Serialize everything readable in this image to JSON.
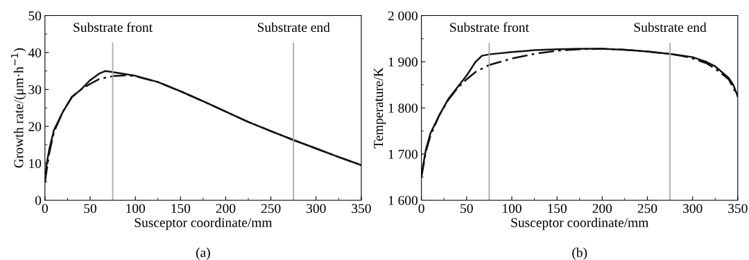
{
  "chart_data": [
    {
      "type": "line",
      "xlabel": "Susceptor coordinate/mm",
      "ylabel": "Growth rate/(μm·h$^{−1}$)",
      "xlim": [
        0,
        350
      ],
      "ylim": [
        0,
        50
      ],
      "xticks": [
        0,
        50,
        100,
        150,
        200,
        250,
        300,
        350
      ],
      "yticks": [
        0,
        10,
        20,
        30,
        40,
        50
      ],
      "grid": false,
      "legend": false,
      "series": [
        {
          "color": "#111111",
          "line_style": "solid",
          "x": [
            0,
            2,
            5,
            10,
            20,
            30,
            40,
            50,
            60,
            67,
            75,
            100,
            125,
            150,
            175,
            200,
            225,
            250,
            275,
            300,
            325,
            350
          ],
          "values": [
            5,
            10,
            14,
            19,
            24,
            28,
            30,
            32.5,
            34.3,
            35,
            34.7,
            33.7,
            32,
            29.5,
            26.8,
            24,
            21.2,
            18.7,
            16.3,
            14,
            11.7,
            9.5
          ]
        },
        {
          "color": "#111111",
          "line_style": "dashed",
          "x": [
            0,
            5,
            10,
            20,
            30,
            40,
            50,
            60,
            75,
            90,
            100,
            125,
            150,
            175,
            200,
            225,
            250,
            275,
            300,
            325,
            350
          ],
          "values": [
            5,
            13,
            18.5,
            24,
            28,
            30,
            31.5,
            32.8,
            33.6,
            33.8,
            33.6,
            32,
            29.5,
            26.8,
            24,
            21.2,
            18.7,
            16.3,
            14,
            11.7,
            9.5
          ]
        }
      ],
      "ref_lines": [
        {
          "axis": "x",
          "value": 75,
          "label": "Substrate front",
          "color": "#aaaaaa"
        },
        {
          "axis": "x",
          "value": 275,
          "label": "Substrate end",
          "color": "#aaaaaa"
        }
      ],
      "annotations": [
        "(a)"
      ]
    },
    {
      "type": "line",
      "xlabel": "Susceptor coordinate/mm",
      "ylabel": "Temperature/K",
      "xlim": [
        0,
        350
      ],
      "ylim": [
        1600,
        2000
      ],
      "xticks": [
        0,
        50,
        100,
        150,
        200,
        250,
        300,
        350
      ],
      "yticks": [
        {
          "value": 1600,
          "label": "1 600"
        },
        {
          "value": 1700,
          "label": "1 700"
        },
        {
          "value": 1800,
          "label": "1 800"
        },
        {
          "value": 1900,
          "label": "1 900"
        },
        {
          "value": 2000,
          "label": "2 000"
        }
      ],
      "grid": false,
      "legend": false,
      "series": [
        {
          "color": "#111111",
          "line_style": "solid",
          "x": [
            0,
            5,
            10,
            20,
            30,
            40,
            50,
            60,
            67,
            75,
            100,
            125,
            150,
            175,
            200,
            225,
            250,
            275,
            290,
            300,
            315,
            325,
            340,
            345,
            350
          ],
          "values": [
            1655,
            1710,
            1745,
            1785,
            1820,
            1845,
            1870,
            1900,
            1913,
            1916,
            1921,
            1925,
            1927,
            1928,
            1928,
            1926,
            1922,
            1917,
            1913,
            1910,
            1900,
            1890,
            1865,
            1850,
            1825
          ]
        },
        {
          "color": "#111111",
          "line_style": "dashed",
          "x": [
            0,
            5,
            10,
            20,
            30,
            40,
            50,
            60,
            75,
            100,
            125,
            150,
            175,
            200,
            225,
            250,
            275,
            290,
            300,
            315,
            325,
            340,
            350
          ],
          "values": [
            1650,
            1705,
            1740,
            1785,
            1818,
            1843,
            1862,
            1878,
            1893,
            1907,
            1917,
            1924,
            1927,
            1928,
            1926,
            1922,
            1917,
            1912,
            1907,
            1897,
            1885,
            1862,
            1825
          ]
        }
      ],
      "ref_lines": [
        {
          "axis": "x",
          "value": 75,
          "label": "Substrate front",
          "color": "#aaaaaa"
        },
        {
          "axis": "x",
          "value": 275,
          "label": "Substrate end",
          "color": "#aaaaaa"
        }
      ],
      "annotations": [
        "(b)"
      ]
    }
  ]
}
